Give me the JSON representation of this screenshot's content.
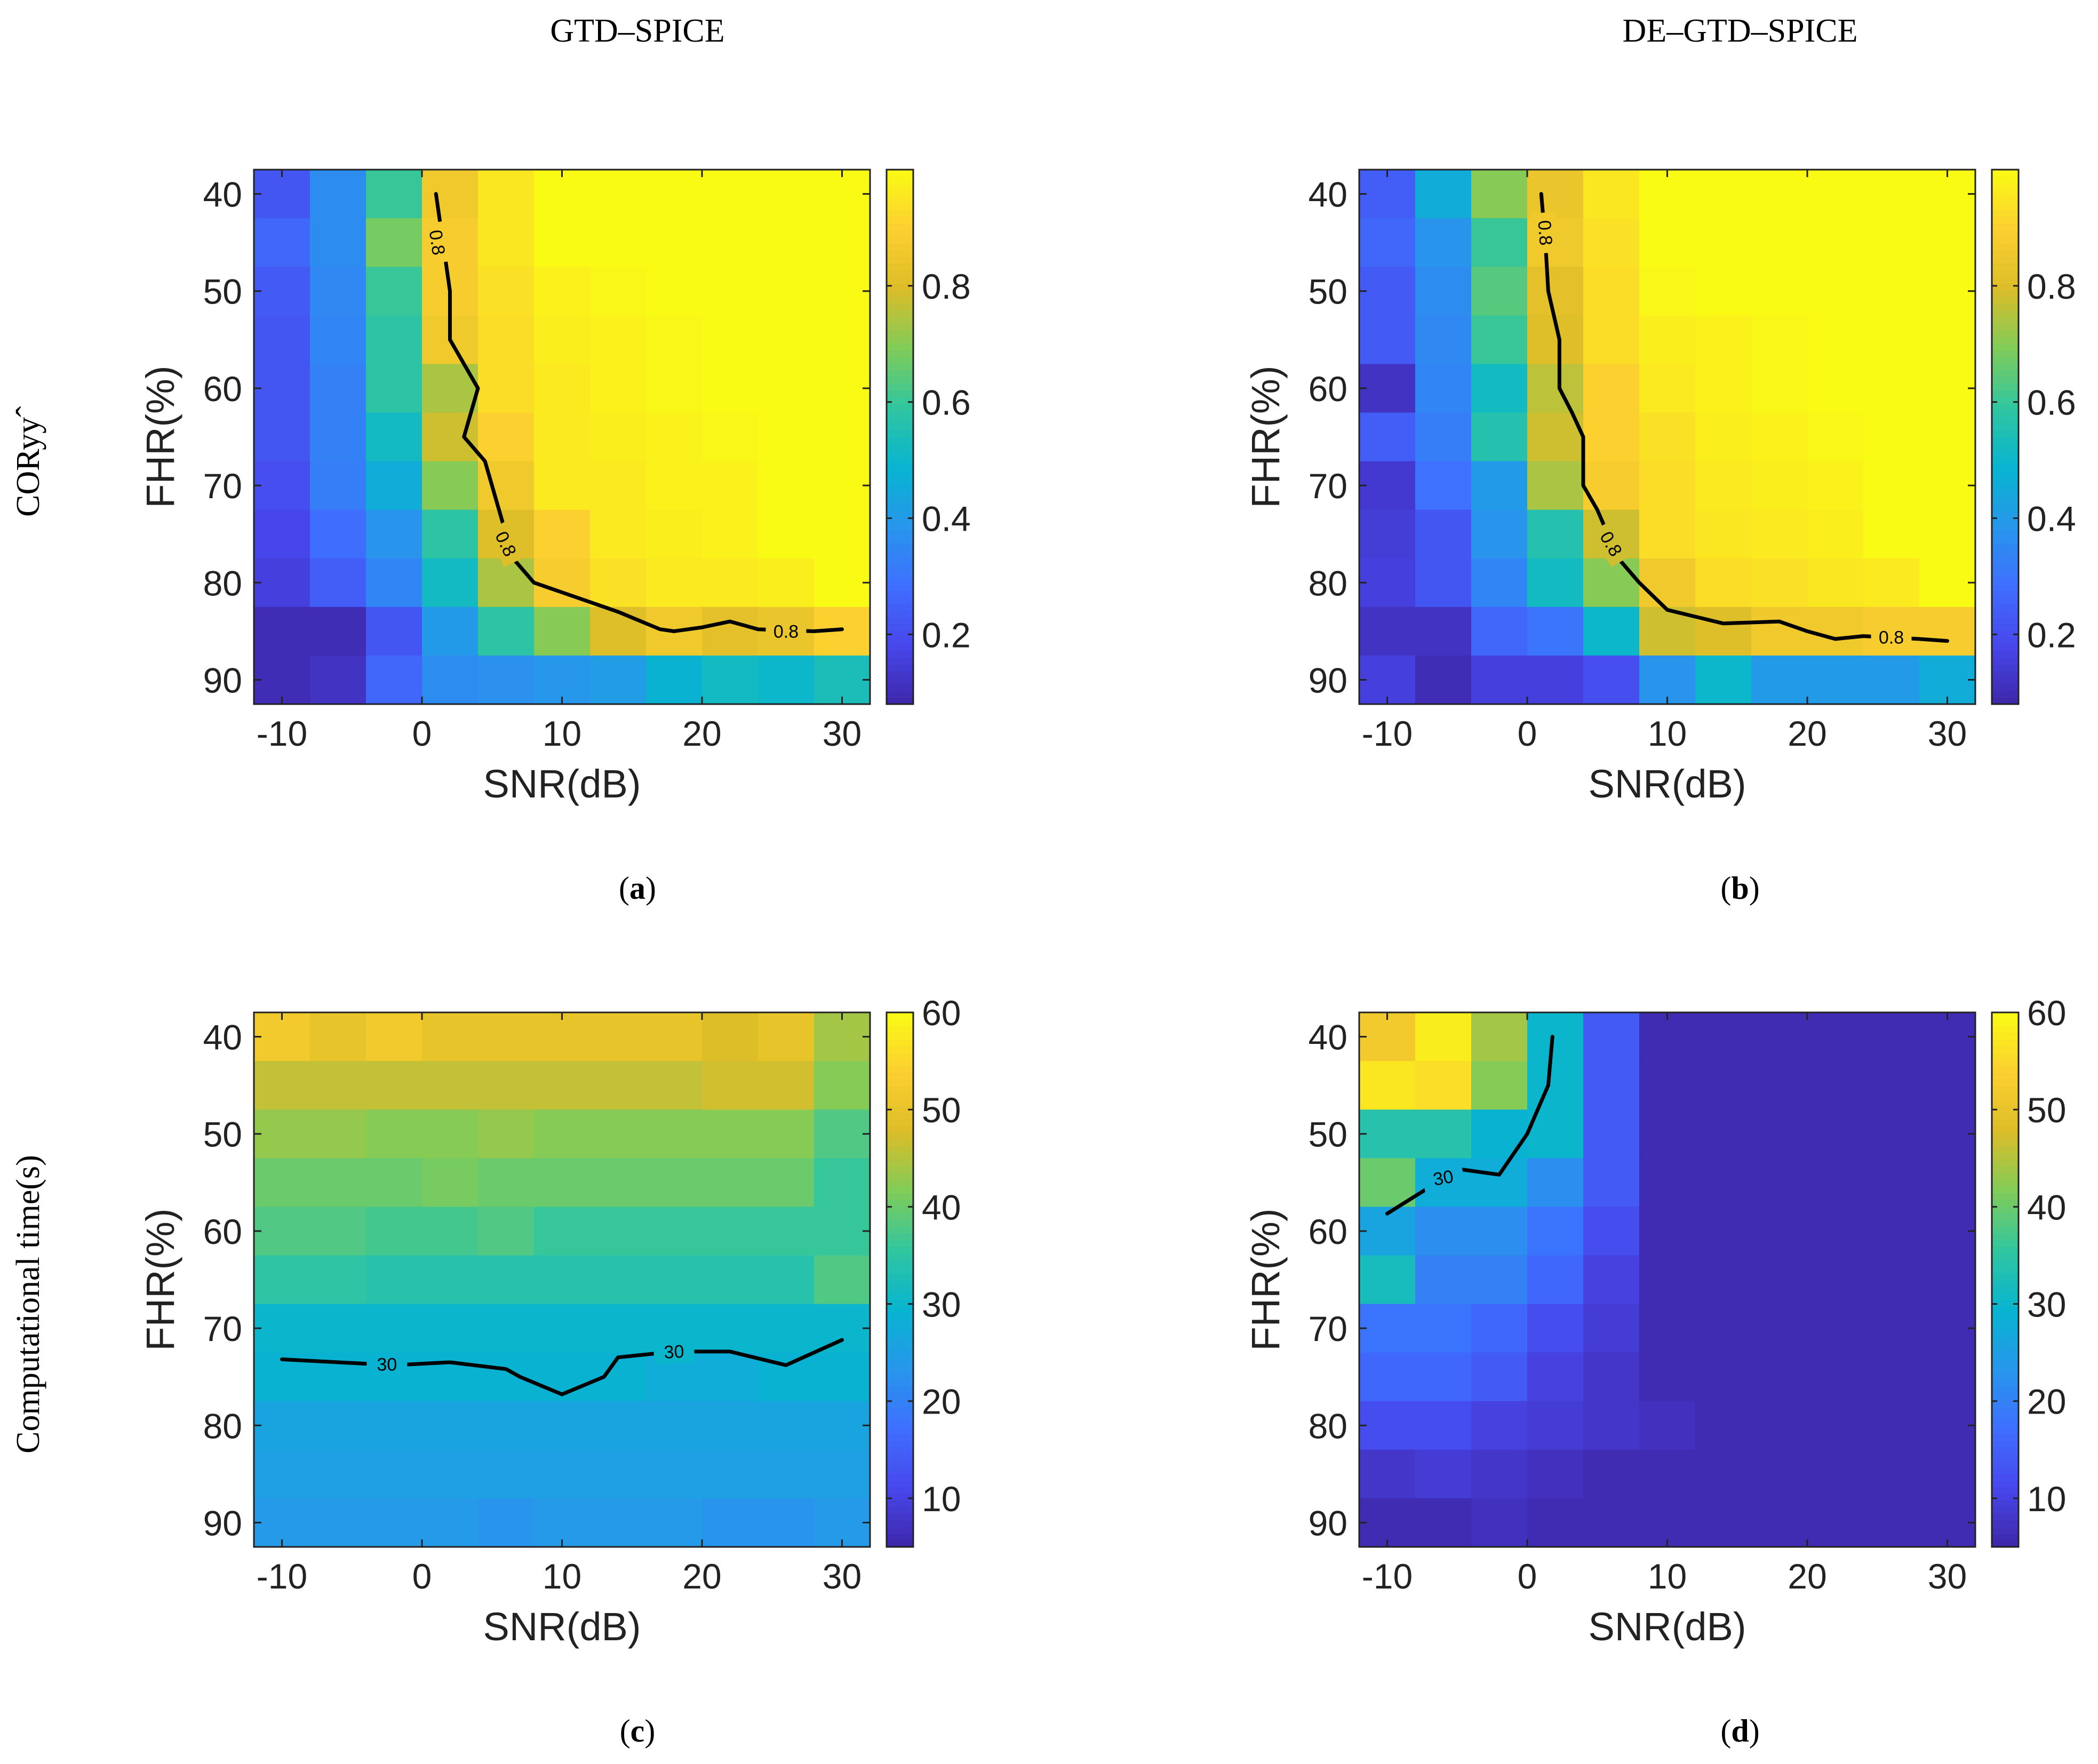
{
  "figure": {
    "column_titles": [
      "GTD–SPICE",
      "DE–GTD–SPICE"
    ],
    "row_labels": [
      "CORyyˆ",
      "Computational time(s)"
    ]
  },
  "chart_data": [
    {
      "type": "heatmap",
      "panel_label": "(a)",
      "label_letter": "a",
      "title": "GTD–SPICE",
      "row_label": "CORyyˆ",
      "xlabel": "SNR(dB)",
      "ylabel": "FHR(%)",
      "x": [
        -10,
        -6,
        -2,
        2,
        6,
        10,
        14,
        18,
        22,
        26,
        30
      ],
      "y": [
        40,
        45,
        50,
        55,
        60,
        65,
        70,
        75,
        80,
        85,
        90
      ],
      "xticks": [
        -10,
        0,
        10,
        20,
        30
      ],
      "yticks": [
        40,
        50,
        60,
        70,
        80,
        90
      ],
      "xlim": [
        -12,
        32
      ],
      "ylim": [
        37.5,
        92.5
      ],
      "clim": [
        0.08,
        1.0
      ],
      "colorbar_ticks": [
        0.2,
        0.4,
        0.6,
        0.8
      ],
      "z": [
        [
          0.22,
          0.36,
          0.6,
          0.86,
          0.95,
          1.0,
          1.0,
          1.0,
          1.0,
          1.0,
          1.0
        ],
        [
          0.26,
          0.36,
          0.68,
          0.88,
          0.95,
          1.0,
          1.0,
          1.0,
          1.0,
          1.0,
          1.0
        ],
        [
          0.23,
          0.35,
          0.6,
          0.88,
          0.94,
          0.98,
          0.99,
          1.0,
          1.0,
          1.0,
          1.0
        ],
        [
          0.22,
          0.34,
          0.58,
          0.86,
          0.93,
          0.97,
          0.98,
          0.99,
          1.0,
          1.0,
          1.0
        ],
        [
          0.22,
          0.33,
          0.58,
          0.74,
          0.93,
          0.96,
          0.98,
          0.99,
          1.0,
          1.0,
          1.0
        ],
        [
          0.22,
          0.33,
          0.52,
          0.78,
          0.9,
          0.96,
          0.97,
          0.98,
          0.99,
          1.0,
          1.0
        ],
        [
          0.2,
          0.32,
          0.46,
          0.7,
          0.86,
          0.96,
          0.96,
          0.98,
          0.98,
          1.0,
          1.0
        ],
        [
          0.18,
          0.28,
          0.38,
          0.58,
          0.8,
          0.9,
          0.96,
          0.97,
          0.98,
          1.0,
          1.0
        ],
        [
          0.16,
          0.24,
          0.34,
          0.52,
          0.74,
          0.88,
          0.94,
          0.96,
          0.96,
          0.97,
          1.0
        ],
        [
          0.1,
          0.1,
          0.22,
          0.4,
          0.58,
          0.7,
          0.8,
          0.86,
          0.82,
          0.84,
          0.9
        ],
        [
          0.1,
          0.12,
          0.26,
          0.36,
          0.37,
          0.39,
          0.41,
          0.48,
          0.52,
          0.5,
          0.54
        ]
      ],
      "contour": {
        "level": 0.8,
        "label": "0.8",
        "points": [
          [
            1,
            40
          ],
          [
            1.5,
            45
          ],
          [
            2,
            50
          ],
          [
            2,
            55
          ],
          [
            3,
            57.5
          ],
          [
            4,
            60
          ],
          [
            3,
            65
          ],
          [
            4.5,
            67.5
          ],
          [
            5,
            70
          ],
          [
            5.5,
            72.5
          ],
          [
            6.5,
            77.5
          ],
          [
            8,
            80
          ],
          [
            10,
            81
          ],
          [
            14,
            83
          ],
          [
            17,
            84.8
          ],
          [
            18,
            85
          ],
          [
            20,
            84.6
          ],
          [
            22,
            84
          ],
          [
            24,
            84.8
          ],
          [
            28,
            85
          ],
          [
            30,
            84.8
          ]
        ],
        "label_positions": [
          [
            1.1,
            45
          ],
          [
            6,
            76
          ],
          [
            26,
            85
          ]
        ]
      }
    },
    {
      "type": "heatmap",
      "panel_label": "(b)",
      "label_letter": "b",
      "title": "DE–GTD–SPICE",
      "row_label": "CORyyˆ",
      "xlabel": "SNR(dB)",
      "ylabel": "FHR(%)",
      "x": [
        -10,
        -6,
        -2,
        2,
        6,
        10,
        14,
        18,
        22,
        26,
        30
      ],
      "y": [
        40,
        45,
        50,
        55,
        60,
        65,
        70,
        75,
        80,
        85,
        90
      ],
      "xticks": [
        -10,
        0,
        10,
        20,
        30
      ],
      "yticks": [
        40,
        50,
        60,
        70,
        80,
        90
      ],
      "xlim": [
        -12,
        32
      ],
      "ylim": [
        37.5,
        92.5
      ],
      "clim": [
        0.08,
        1.0
      ],
      "colorbar_ticks": [
        0.2,
        0.4,
        0.6,
        0.8
      ],
      "z": [
        [
          0.24,
          0.46,
          0.7,
          0.84,
          0.95,
          1.0,
          1.0,
          1.0,
          1.0,
          1.0,
          1.0
        ],
        [
          0.26,
          0.38,
          0.6,
          0.86,
          0.94,
          1.0,
          1.0,
          1.0,
          1.0,
          1.0,
          1.0
        ],
        [
          0.23,
          0.36,
          0.64,
          0.82,
          0.93,
          0.99,
          1.0,
          1.0,
          1.0,
          1.0,
          1.0
        ],
        [
          0.23,
          0.35,
          0.6,
          0.8,
          0.93,
          0.97,
          0.98,
          0.99,
          1.0,
          1.0,
          1.0
        ],
        [
          0.12,
          0.34,
          0.52,
          0.76,
          0.9,
          0.96,
          0.98,
          0.99,
          1.0,
          1.0,
          1.0
        ],
        [
          0.24,
          0.32,
          0.56,
          0.78,
          0.9,
          0.94,
          0.97,
          0.98,
          0.99,
          1.0,
          1.0
        ],
        [
          0.14,
          0.29,
          0.4,
          0.74,
          0.88,
          0.93,
          0.96,
          0.97,
          0.98,
          1.0,
          1.0
        ],
        [
          0.15,
          0.22,
          0.38,
          0.56,
          0.78,
          0.93,
          0.95,
          0.96,
          0.97,
          1.0,
          1.0
        ],
        [
          0.16,
          0.22,
          0.34,
          0.52,
          0.7,
          0.86,
          0.93,
          0.94,
          0.95,
          0.96,
          1.0
        ],
        [
          0.12,
          0.12,
          0.26,
          0.3,
          0.5,
          0.78,
          0.8,
          0.86,
          0.86,
          0.88,
          0.88
        ],
        [
          0.16,
          0.1,
          0.16,
          0.16,
          0.2,
          0.38,
          0.5,
          0.4,
          0.4,
          0.4,
          0.46
        ]
      ],
      "contour": {
        "level": 0.8,
        "label": "0.8",
        "points": [
          [
            1,
            40
          ],
          [
            1.3,
            45
          ],
          [
            1.5,
            50
          ],
          [
            2.3,
            55
          ],
          [
            2.3,
            60
          ],
          [
            3.2,
            62.5
          ],
          [
            4,
            65
          ],
          [
            4,
            70
          ],
          [
            5,
            72.5
          ],
          [
            6.5,
            77.5
          ],
          [
            8,
            80
          ],
          [
            10,
            82.8
          ],
          [
            14,
            84.2
          ],
          [
            18,
            84
          ],
          [
            20,
            85
          ],
          [
            22,
            85.8
          ],
          [
            24,
            85.5
          ],
          [
            28,
            85.8
          ],
          [
            30,
            86
          ]
        ],
        "label_positions": [
          [
            1.3,
            44
          ],
          [
            6,
            76
          ],
          [
            26,
            85.6
          ]
        ]
      }
    },
    {
      "type": "heatmap",
      "panel_label": "(c)",
      "label_letter": "c",
      "title": "GTD–SPICE",
      "row_label": "Computational time(s)",
      "xlabel": "SNR(dB)",
      "ylabel": "FHR(%)",
      "x": [
        -10,
        -6,
        -2,
        2,
        6,
        10,
        14,
        18,
        22,
        26,
        30
      ],
      "y": [
        40,
        45,
        50,
        55,
        60,
        65,
        70,
        75,
        80,
        85,
        90
      ],
      "xticks": [
        -10,
        0,
        10,
        20,
        30
      ],
      "yticks": [
        40,
        50,
        60,
        70,
        80,
        90
      ],
      "xlim": [
        -12,
        32
      ],
      "ylim": [
        37.5,
        92.5
      ],
      "clim": [
        5,
        60
      ],
      "colorbar_ticks": [
        10,
        20,
        30,
        40,
        50,
        60
      ],
      "z": [
        [
          52,
          50,
          52,
          50,
          50,
          50,
          50,
          50,
          48,
          50,
          44
        ],
        [
          46,
          46,
          46,
          46,
          46,
          46,
          46,
          46,
          47,
          47,
          42
        ],
        [
          43,
          43,
          42,
          42,
          43,
          42,
          42,
          42,
          42,
          42,
          38
        ],
        [
          40,
          40,
          40,
          41,
          40,
          40,
          40,
          40,
          40,
          40,
          36
        ],
        [
          38,
          38,
          37,
          37,
          38,
          36,
          36,
          36,
          36,
          36,
          36
        ],
        [
          35,
          35,
          34,
          34,
          34,
          34,
          34,
          34,
          34,
          34,
          38
        ],
        [
          30,
          30,
          30,
          30,
          30,
          30,
          30,
          30,
          30,
          30,
          30
        ],
        [
          29,
          29,
          29,
          29,
          29,
          29,
          29,
          28,
          28,
          29,
          29
        ],
        [
          26,
          26,
          26,
          26,
          26,
          26,
          26,
          26,
          26,
          26,
          26
        ],
        [
          25,
          25,
          25,
          25,
          25,
          25,
          25,
          25,
          25,
          25,
          25
        ],
        [
          24,
          24,
          24,
          24,
          23,
          24,
          24,
          24,
          23,
          23,
          24
        ]
      ],
      "contour": {
        "level": 30,
        "label": "30",
        "points": [
          [
            -10,
            73.2
          ],
          [
            -6,
            73.5
          ],
          [
            -2,
            73.8
          ],
          [
            2,
            73.5
          ],
          [
            6,
            74.2
          ],
          [
            7,
            75
          ],
          [
            10,
            76.8
          ],
          [
            13,
            75
          ],
          [
            14,
            73
          ],
          [
            18,
            72.4
          ],
          [
            22,
            72.4
          ],
          [
            26,
            73.8
          ],
          [
            30,
            71.2
          ]
        ],
        "label_positions": [
          [
            -2.5,
            73.7
          ],
          [
            18,
            72.4
          ]
        ]
      }
    },
    {
      "type": "heatmap",
      "panel_label": "(d)",
      "label_letter": "d",
      "title": "DE–GTD–SPICE",
      "row_label": "Computational time(s)",
      "xlabel": "SNR(dB)",
      "ylabel": "FHR(%)",
      "x": [
        -10,
        -6,
        -2,
        2,
        6,
        10,
        14,
        18,
        22,
        26,
        30
      ],
      "y": [
        40,
        45,
        50,
        55,
        60,
        65,
        70,
        75,
        80,
        85,
        90
      ],
      "xticks": [
        -10,
        0,
        10,
        20,
        30
      ],
      "yticks": [
        40,
        50,
        60,
        70,
        80,
        90
      ],
      "xlim": [
        -12,
        32
      ],
      "ylim": [
        37.5,
        92.5
      ],
      "clim": [
        5,
        60
      ],
      "colorbar_ticks": [
        10,
        20,
        30,
        40,
        50,
        60
      ],
      "z": [
        [
          52,
          58,
          44,
          30,
          14,
          6,
          6,
          6,
          6,
          6,
          6
        ],
        [
          57,
          56,
          42,
          30,
          14,
          6,
          6,
          6,
          6,
          6,
          6
        ],
        [
          34,
          34,
          29,
          30,
          14,
          6,
          6,
          6,
          6,
          6,
          6
        ],
        [
          40,
          28,
          28,
          22,
          14,
          6,
          6,
          6,
          6,
          6,
          6
        ],
        [
          26,
          22,
          22,
          18,
          12,
          6,
          6,
          6,
          6,
          6,
          6
        ],
        [
          32,
          20,
          20,
          16,
          10,
          6,
          6,
          6,
          6,
          6,
          6
        ],
        [
          18,
          18,
          16,
          12,
          9,
          6,
          6,
          6,
          6,
          6,
          6
        ],
        [
          16,
          16,
          14,
          10,
          8,
          6,
          6,
          6,
          6,
          6,
          6
        ],
        [
          12,
          12,
          10,
          9,
          8,
          7,
          6,
          6,
          6,
          6,
          6
        ],
        [
          8,
          9,
          8,
          7,
          6,
          6,
          6,
          6,
          6,
          6,
          6
        ],
        [
          6,
          6,
          7,
          6,
          6,
          6,
          6,
          6,
          6,
          6,
          6
        ]
      ],
      "contour": {
        "level": 30,
        "label": "30",
        "points": [
          [
            -10,
            58.2
          ],
          [
            -7,
            55.5
          ],
          [
            -5,
            53.6
          ],
          [
            -2,
            54.2
          ],
          [
            0,
            50
          ],
          [
            1.5,
            45
          ],
          [
            1.8,
            40
          ]
        ],
        "label_positions": [
          [
            -6,
            54.5
          ]
        ]
      }
    }
  ]
}
